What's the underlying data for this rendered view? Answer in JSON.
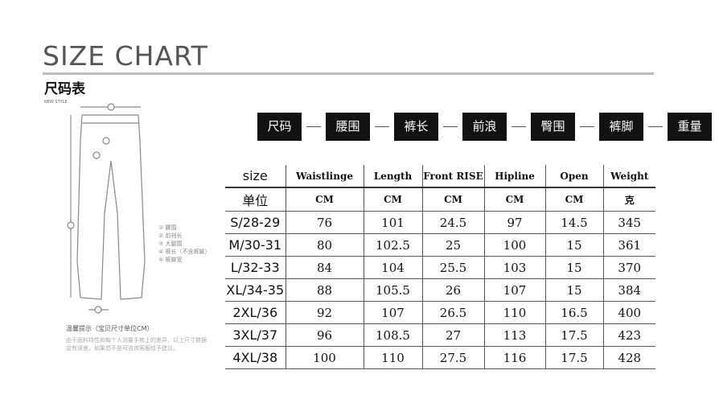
{
  "title": "SIZE CHART",
  "subtitle": "尺码表",
  "new_style": "NEW STYLE",
  "tags": [
    "尺码",
    "腰围",
    "裤长",
    "前浪",
    "臀围",
    "裤脚",
    "重量"
  ],
  "legend": [
    "① 腰围",
    "② 前裆长",
    "③ 大腿围",
    "④ 裤长（不含裤脚）",
    "⑤ 裤脚宽"
  ],
  "note_title": "温馨提示（宝贝尺寸单位CM）",
  "note_body": "由于面料特性和每个人测量手势上的差异，以上尺寸数据会有误差，如果想不是可咨询客服给予建议。",
  "table": {
    "headers": [
      "size",
      "Waistlinge",
      "Length",
      "Front RISE",
      "Hipline",
      "Open",
      "Weight"
    ],
    "units": [
      "单位",
      "CM",
      "CM",
      "CM",
      "CM",
      "CM",
      "克"
    ],
    "rows": [
      [
        "S/28-29",
        "76",
        "101",
        "24.5",
        "97",
        "14.5",
        "345"
      ],
      [
        "M/30-31",
        "80",
        "102.5",
        "25",
        "100",
        "15",
        "361"
      ],
      [
        "L/32-33",
        "84",
        "104",
        "25.5",
        "103",
        "15",
        "370"
      ],
      [
        "XL/34-35",
        "88",
        "105.5",
        "26",
        "107",
        "15",
        "384"
      ],
      [
        "2XL/36",
        "92",
        "107",
        "26.5",
        "110",
        "16.5",
        "400"
      ],
      [
        "3XL/37",
        "96",
        "108.5",
        "27",
        "113",
        "17.5",
        "423"
      ],
      [
        "4XL/38",
        "100",
        "110",
        "27.5",
        "116",
        "17.5",
        "428"
      ]
    ]
  }
}
